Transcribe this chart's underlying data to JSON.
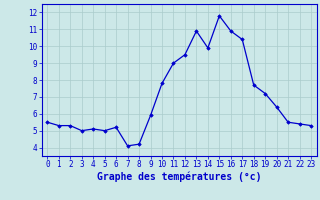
{
  "hours": [
    0,
    1,
    2,
    3,
    4,
    5,
    6,
    7,
    8,
    9,
    10,
    11,
    12,
    13,
    14,
    15,
    16,
    17,
    18,
    19,
    20,
    21,
    22,
    23
  ],
  "temperatures": [
    5.5,
    5.3,
    5.3,
    5.0,
    5.1,
    5.0,
    5.2,
    4.1,
    4.2,
    5.9,
    7.8,
    9.0,
    9.5,
    10.9,
    9.9,
    11.8,
    10.9,
    10.4,
    7.7,
    7.2,
    6.4,
    5.5,
    5.4,
    5.3
  ],
  "line_color": "#0000cc",
  "marker": "D",
  "markersize": 1.8,
  "linewidth": 0.9,
  "bg_color": "#cce8e8",
  "grid_color": "#aacccc",
  "xlabel": "Graphe des températures (°c)",
  "xlabel_color": "#0000cc",
  "ylabel_ticks": [
    4,
    5,
    6,
    7,
    8,
    9,
    10,
    11,
    12
  ],
  "xlim": [
    -0.5,
    23.5
  ],
  "ylim": [
    3.5,
    12.5
  ],
  "tick_fontsize": 5.5,
  "label_fontsize": 7.0
}
